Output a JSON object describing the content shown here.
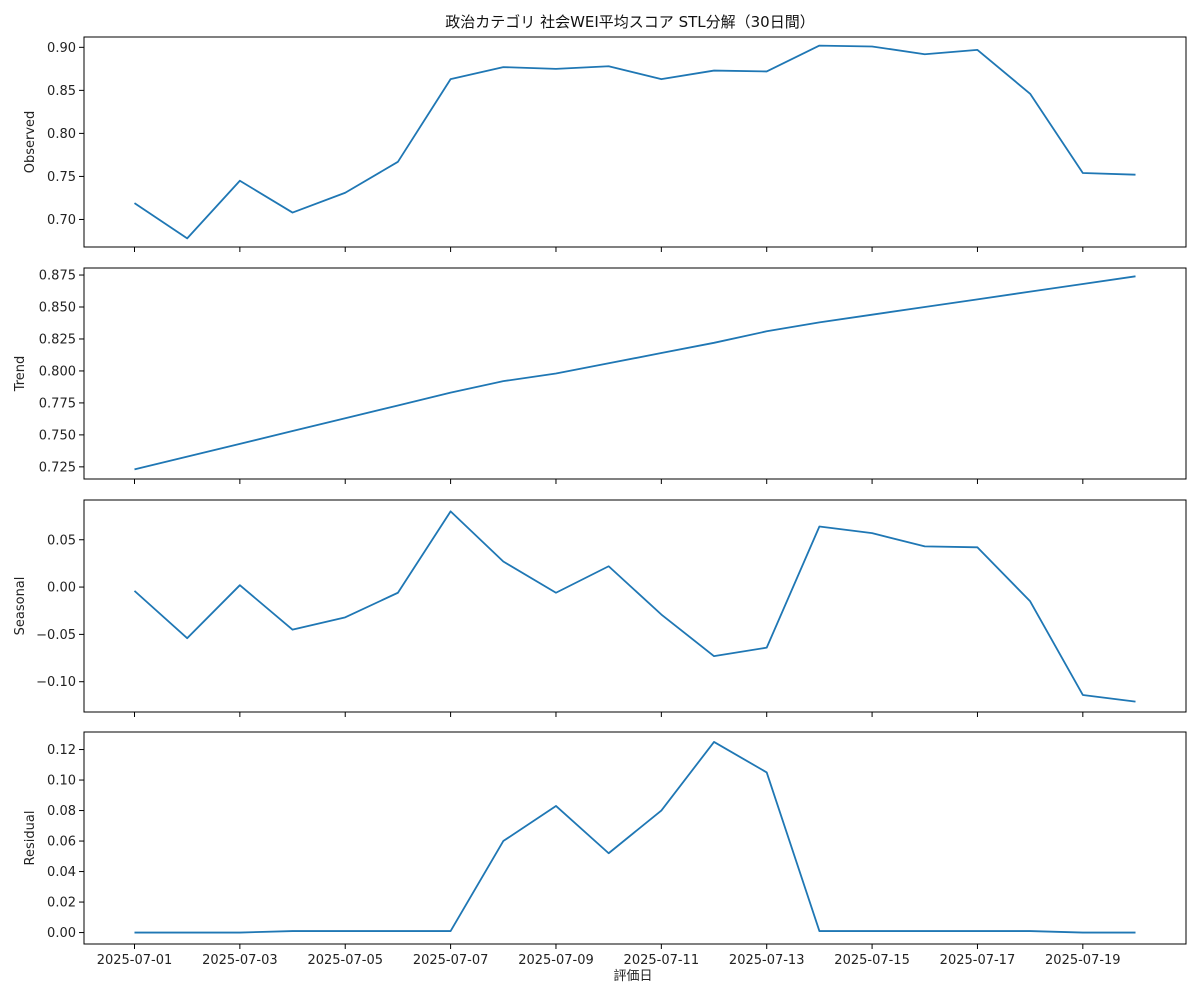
{
  "title": "政治カテゴリ 社会WEI平均スコア STL分解（30日間）",
  "xlabel": "評価日",
  "line_color": "#1f77b4",
  "chart_data": {
    "type": "line",
    "title": "政治カテゴリ 社会WEI平均スコア STL分解（30日間）",
    "xlabel": "評価日",
    "x": [
      "2025-07-01",
      "2025-07-02",
      "2025-07-03",
      "2025-07-04",
      "2025-07-05",
      "2025-07-06",
      "2025-07-07",
      "2025-07-08",
      "2025-07-09",
      "2025-07-10",
      "2025-07-11",
      "2025-07-12",
      "2025-07-13",
      "2025-07-14",
      "2025-07-15",
      "2025-07-16",
      "2025-07-17",
      "2025-07-18",
      "2025-07-19",
      "2025-07-20"
    ],
    "xticks": [
      "2025-07-01",
      "2025-07-03",
      "2025-07-05",
      "2025-07-07",
      "2025-07-09",
      "2025-07-11",
      "2025-07-13",
      "2025-07-15",
      "2025-07-17",
      "2025-07-19"
    ],
    "xlim": [
      "2025-06-30T01:00",
      "2025-07-20T23:00"
    ],
    "grid": false,
    "panels": [
      {
        "name": "Observed",
        "ylabel": "Observed",
        "ylim": [
          0.668,
          0.912
        ],
        "yticks": [
          0.7,
          0.75,
          0.8,
          0.85,
          0.9
        ],
        "ytick_labels": [
          "0.70",
          "0.75",
          "0.80",
          "0.85",
          "0.90"
        ],
        "values": [
          0.719,
          0.678,
          0.745,
          0.708,
          0.731,
          0.767,
          0.863,
          0.877,
          0.875,
          0.878,
          0.863,
          0.873,
          0.872,
          0.902,
          0.901,
          0.892,
          0.897,
          0.846,
          0.754,
          0.752
        ]
      },
      {
        "name": "Trend",
        "ylabel": "Trend",
        "ylim": [
          0.7155,
          0.8805
        ],
        "yticks": [
          0.725,
          0.75,
          0.775,
          0.8,
          0.825,
          0.85,
          0.875
        ],
        "ytick_labels": [
          "0.725",
          "0.750",
          "0.775",
          "0.800",
          "0.825",
          "0.850",
          "0.875"
        ],
        "values": [
          0.723,
          0.733,
          0.743,
          0.753,
          0.763,
          0.773,
          0.783,
          0.792,
          0.798,
          0.806,
          0.814,
          0.822,
          0.831,
          0.838,
          0.844,
          0.85,
          0.856,
          0.862,
          0.868,
          0.874
        ]
      },
      {
        "name": "Seasonal",
        "ylabel": "Seasonal",
        "ylim": [
          -0.132,
          0.092
        ],
        "yticks": [
          -0.1,
          -0.05,
          0.0,
          0.05
        ],
        "ytick_labels": [
          "−0.10",
          "−0.05",
          "0.00",
          "0.05"
        ],
        "values": [
          -0.004,
          -0.054,
          0.002,
          -0.045,
          -0.032,
          -0.006,
          0.08,
          0.027,
          -0.006,
          0.022,
          -0.029,
          -0.073,
          -0.064,
          0.064,
          0.057,
          0.043,
          0.042,
          -0.015,
          -0.114,
          -0.121
        ]
      },
      {
        "name": "Residual",
        "ylabel": "Residual",
        "ylim": [
          -0.0075,
          0.1315
        ],
        "yticks": [
          0.0,
          0.02,
          0.04,
          0.06,
          0.08,
          0.1,
          0.12
        ],
        "ytick_labels": [
          "0.00",
          "0.02",
          "0.04",
          "0.06",
          "0.08",
          "0.10",
          "0.12"
        ],
        "values": [
          0.0,
          0.0,
          0.0,
          0.001,
          0.001,
          0.001,
          0.001,
          0.06,
          0.083,
          0.052,
          0.08,
          0.125,
          0.105,
          0.001,
          0.001,
          0.001,
          0.001,
          0.001,
          0.0,
          0.0
        ]
      }
    ]
  }
}
